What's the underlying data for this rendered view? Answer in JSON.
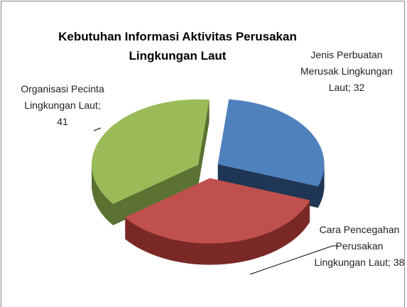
{
  "chart_data": {
    "type": "pie3d",
    "title": "Kebutuhan Informasi Aktivitas Perusakan Lingkungan Laut",
    "values": [
      32,
      38,
      41
    ],
    "value_labels": [
      "Jenis Perbuatan Merusak Lingkungan Laut; 32",
      "Cara Pencegahan Perusakan Lingkungan Laut; 38",
      "Organisasi Pecinta Lingkungan Laut; 41"
    ],
    "colors": [
      "#4f81bd",
      "#c0504d",
      "#9bbb59"
    ],
    "side_colors": [
      "#1f3654",
      "#7a2927",
      "#5b7232"
    ]
  }
}
